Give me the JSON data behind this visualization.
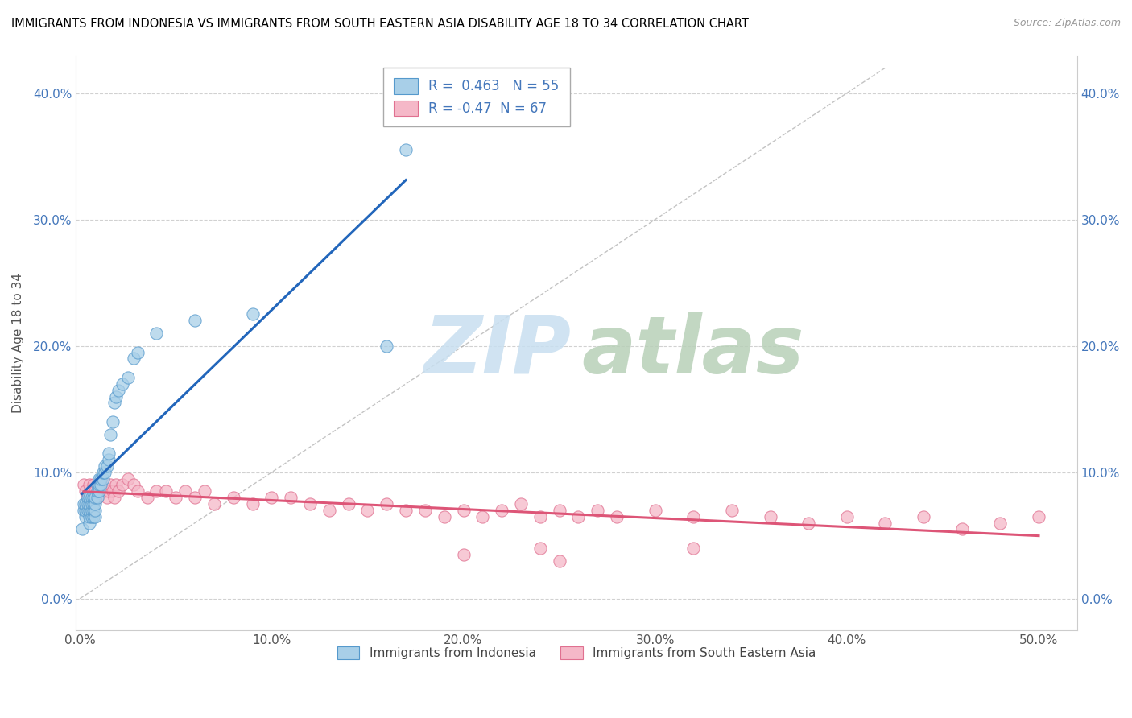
{
  "title": "IMMIGRANTS FROM INDONESIA VS IMMIGRANTS FROM SOUTH EASTERN ASIA DISABILITY AGE 18 TO 34 CORRELATION CHART",
  "source": "Source: ZipAtlas.com",
  "ylabel": "Disability Age 18 to 34",
  "xlim": [
    -0.002,
    0.52
  ],
  "ylim": [
    -0.025,
    0.43
  ],
  "xticks": [
    0.0,
    0.1,
    0.2,
    0.3,
    0.4,
    0.5
  ],
  "yticks": [
    0.0,
    0.1,
    0.2,
    0.3,
    0.4
  ],
  "R_blue": 0.463,
  "N_blue": 55,
  "R_pink": -0.47,
  "N_pink": 67,
  "blue_color": "#a8cfe8",
  "pink_color": "#f5b8c8",
  "blue_edge_color": "#5599cc",
  "pink_edge_color": "#e07090",
  "blue_line_color": "#2266bb",
  "pink_line_color": "#dd5577",
  "tick_color": "#4477bb",
  "legend_label_blue": "Immigrants from Indonesia",
  "legend_label_pink": "Immigrants from South Eastern Asia",
  "blue_x": [
    0.001,
    0.002,
    0.002,
    0.003,
    0.003,
    0.003,
    0.004,
    0.004,
    0.004,
    0.005,
    0.005,
    0.005,
    0.005,
    0.005,
    0.006,
    0.006,
    0.006,
    0.006,
    0.007,
    0.007,
    0.007,
    0.007,
    0.008,
    0.008,
    0.008,
    0.008,
    0.009,
    0.009,
    0.009,
    0.01,
    0.01,
    0.01,
    0.011,
    0.011,
    0.012,
    0.012,
    0.013,
    0.013,
    0.014,
    0.015,
    0.015,
    0.016,
    0.017,
    0.018,
    0.019,
    0.02,
    0.022,
    0.025,
    0.028,
    0.03,
    0.04,
    0.06,
    0.09,
    0.16,
    0.17
  ],
  "blue_y": [
    0.055,
    0.07,
    0.075,
    0.065,
    0.07,
    0.075,
    0.07,
    0.075,
    0.08,
    0.06,
    0.065,
    0.07,
    0.075,
    0.08,
    0.065,
    0.07,
    0.075,
    0.08,
    0.065,
    0.07,
    0.075,
    0.08,
    0.065,
    0.07,
    0.075,
    0.08,
    0.08,
    0.085,
    0.09,
    0.085,
    0.09,
    0.095,
    0.09,
    0.095,
    0.095,
    0.1,
    0.1,
    0.105,
    0.105,
    0.11,
    0.115,
    0.13,
    0.14,
    0.155,
    0.16,
    0.165,
    0.17,
    0.175,
    0.19,
    0.195,
    0.21,
    0.22,
    0.225,
    0.2,
    0.355
  ],
  "pink_x": [
    0.002,
    0.003,
    0.004,
    0.005,
    0.006,
    0.007,
    0.008,
    0.009,
    0.01,
    0.011,
    0.012,
    0.013,
    0.014,
    0.015,
    0.016,
    0.017,
    0.018,
    0.019,
    0.02,
    0.022,
    0.025,
    0.028,
    0.03,
    0.035,
    0.04,
    0.045,
    0.05,
    0.055,
    0.06,
    0.065,
    0.07,
    0.08,
    0.09,
    0.1,
    0.11,
    0.12,
    0.13,
    0.14,
    0.15,
    0.16,
    0.17,
    0.18,
    0.19,
    0.2,
    0.21,
    0.22,
    0.23,
    0.24,
    0.25,
    0.26,
    0.27,
    0.28,
    0.3,
    0.32,
    0.34,
    0.36,
    0.38,
    0.4,
    0.42,
    0.44,
    0.46,
    0.48,
    0.5,
    0.32,
    0.24,
    0.2,
    0.25
  ],
  "pink_y": [
    0.09,
    0.085,
    0.08,
    0.09,
    0.085,
    0.09,
    0.085,
    0.08,
    0.09,
    0.085,
    0.09,
    0.085,
    0.08,
    0.085,
    0.09,
    0.085,
    0.08,
    0.09,
    0.085,
    0.09,
    0.095,
    0.09,
    0.085,
    0.08,
    0.085,
    0.085,
    0.08,
    0.085,
    0.08,
    0.085,
    0.075,
    0.08,
    0.075,
    0.08,
    0.08,
    0.075,
    0.07,
    0.075,
    0.07,
    0.075,
    0.07,
    0.07,
    0.065,
    0.07,
    0.065,
    0.07,
    0.075,
    0.065,
    0.07,
    0.065,
    0.07,
    0.065,
    0.07,
    0.065,
    0.07,
    0.065,
    0.06,
    0.065,
    0.06,
    0.065,
    0.055,
    0.06,
    0.065,
    0.04,
    0.04,
    0.035,
    0.03
  ]
}
